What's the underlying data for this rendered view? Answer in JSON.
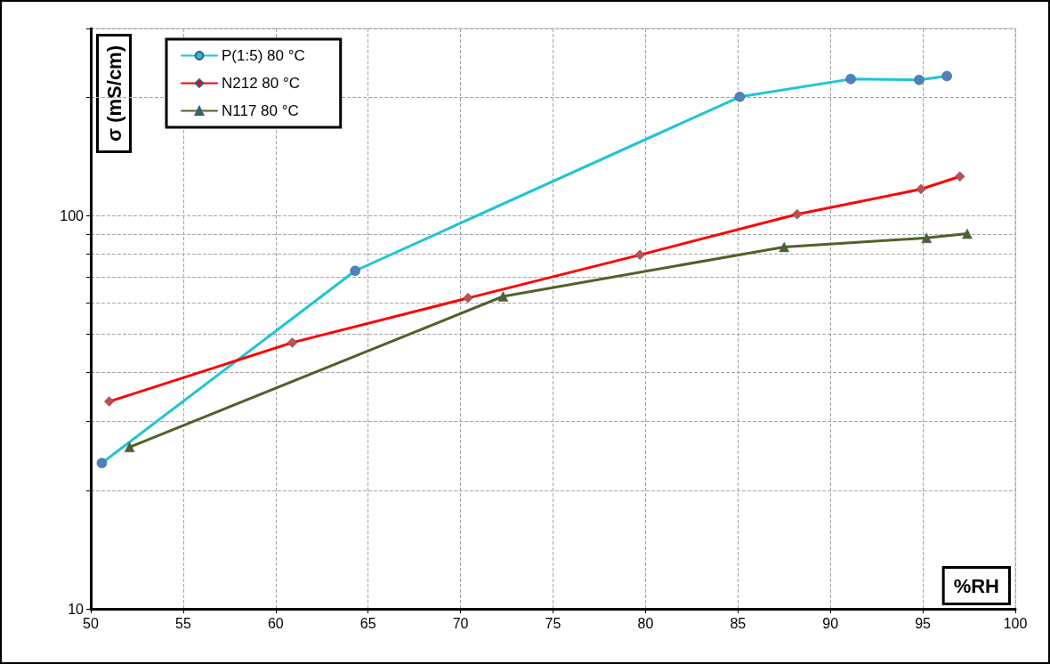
{
  "chart_data": {
    "type": "line",
    "xlabel": "%RH",
    "ylabel": "σ (mS/cm)",
    "log": "y",
    "grid": true,
    "legend": "top left",
    "marker": "circle",
    "line_style": "solid",
    "xlim": [
      50,
      100
    ],
    "xticks": [
      50,
      55,
      60,
      65,
      70,
      75,
      80,
      85,
      90,
      95,
      100
    ],
    "ylim": [
      10,
      300
    ],
    "yticks": [
      10,
      {
        "value": 20,
        "label": null
      },
      {
        "value": 30,
        "label": null
      },
      {
        "value": 40,
        "label": null
      },
      {
        "value": 50,
        "label": null
      },
      {
        "value": 60,
        "label": null
      },
      {
        "value": 70,
        "label": null
      },
      {
        "value": 80,
        "label": null
      },
      {
        "value": 90,
        "label": null
      },
      100,
      {
        "value": 200,
        "label": null
      },
      {
        "value": 300,
        "label": null
      }
    ],
    "series": [
      {
        "name": "P(1:5) 80 °C",
        "color": "#20c4d4",
        "colors": [
          "#4f81bd",
          "#4f81bd",
          "#4f81bd",
          "#4f81bd",
          "#4f81bd",
          "#4f81bd"
        ],
        "x": [
          50.6,
          64.3,
          85.1,
          91.1,
          94.8,
          96.3
        ],
        "values": [
          23.5,
          72.5,
          201,
          223,
          222,
          227
        ]
      },
      {
        "name": "N212 80 °C",
        "color": "#ff0000",
        "marker": "diamond",
        "colors": [
          "#c0504d",
          "#c0504d",
          "#c0504d",
          "#c0504d",
          "#c0504d",
          "#c0504d",
          "#c0504d"
        ],
        "x": [
          51.0,
          60.9,
          70.4,
          79.7,
          88.2,
          94.9,
          97.0
        ],
        "values": [
          33.7,
          47.6,
          61.8,
          79.6,
          101,
          117,
          126
        ]
      },
      {
        "name": "N117 80 °C",
        "color": "#4f6228",
        "marker": "triangle",
        "x": [
          52.1,
          72.3,
          87.5,
          95.2,
          97.4
        ],
        "values": [
          25.8,
          62.4,
          83.4,
          87.9,
          90.1
        ]
      }
    ]
  }
}
